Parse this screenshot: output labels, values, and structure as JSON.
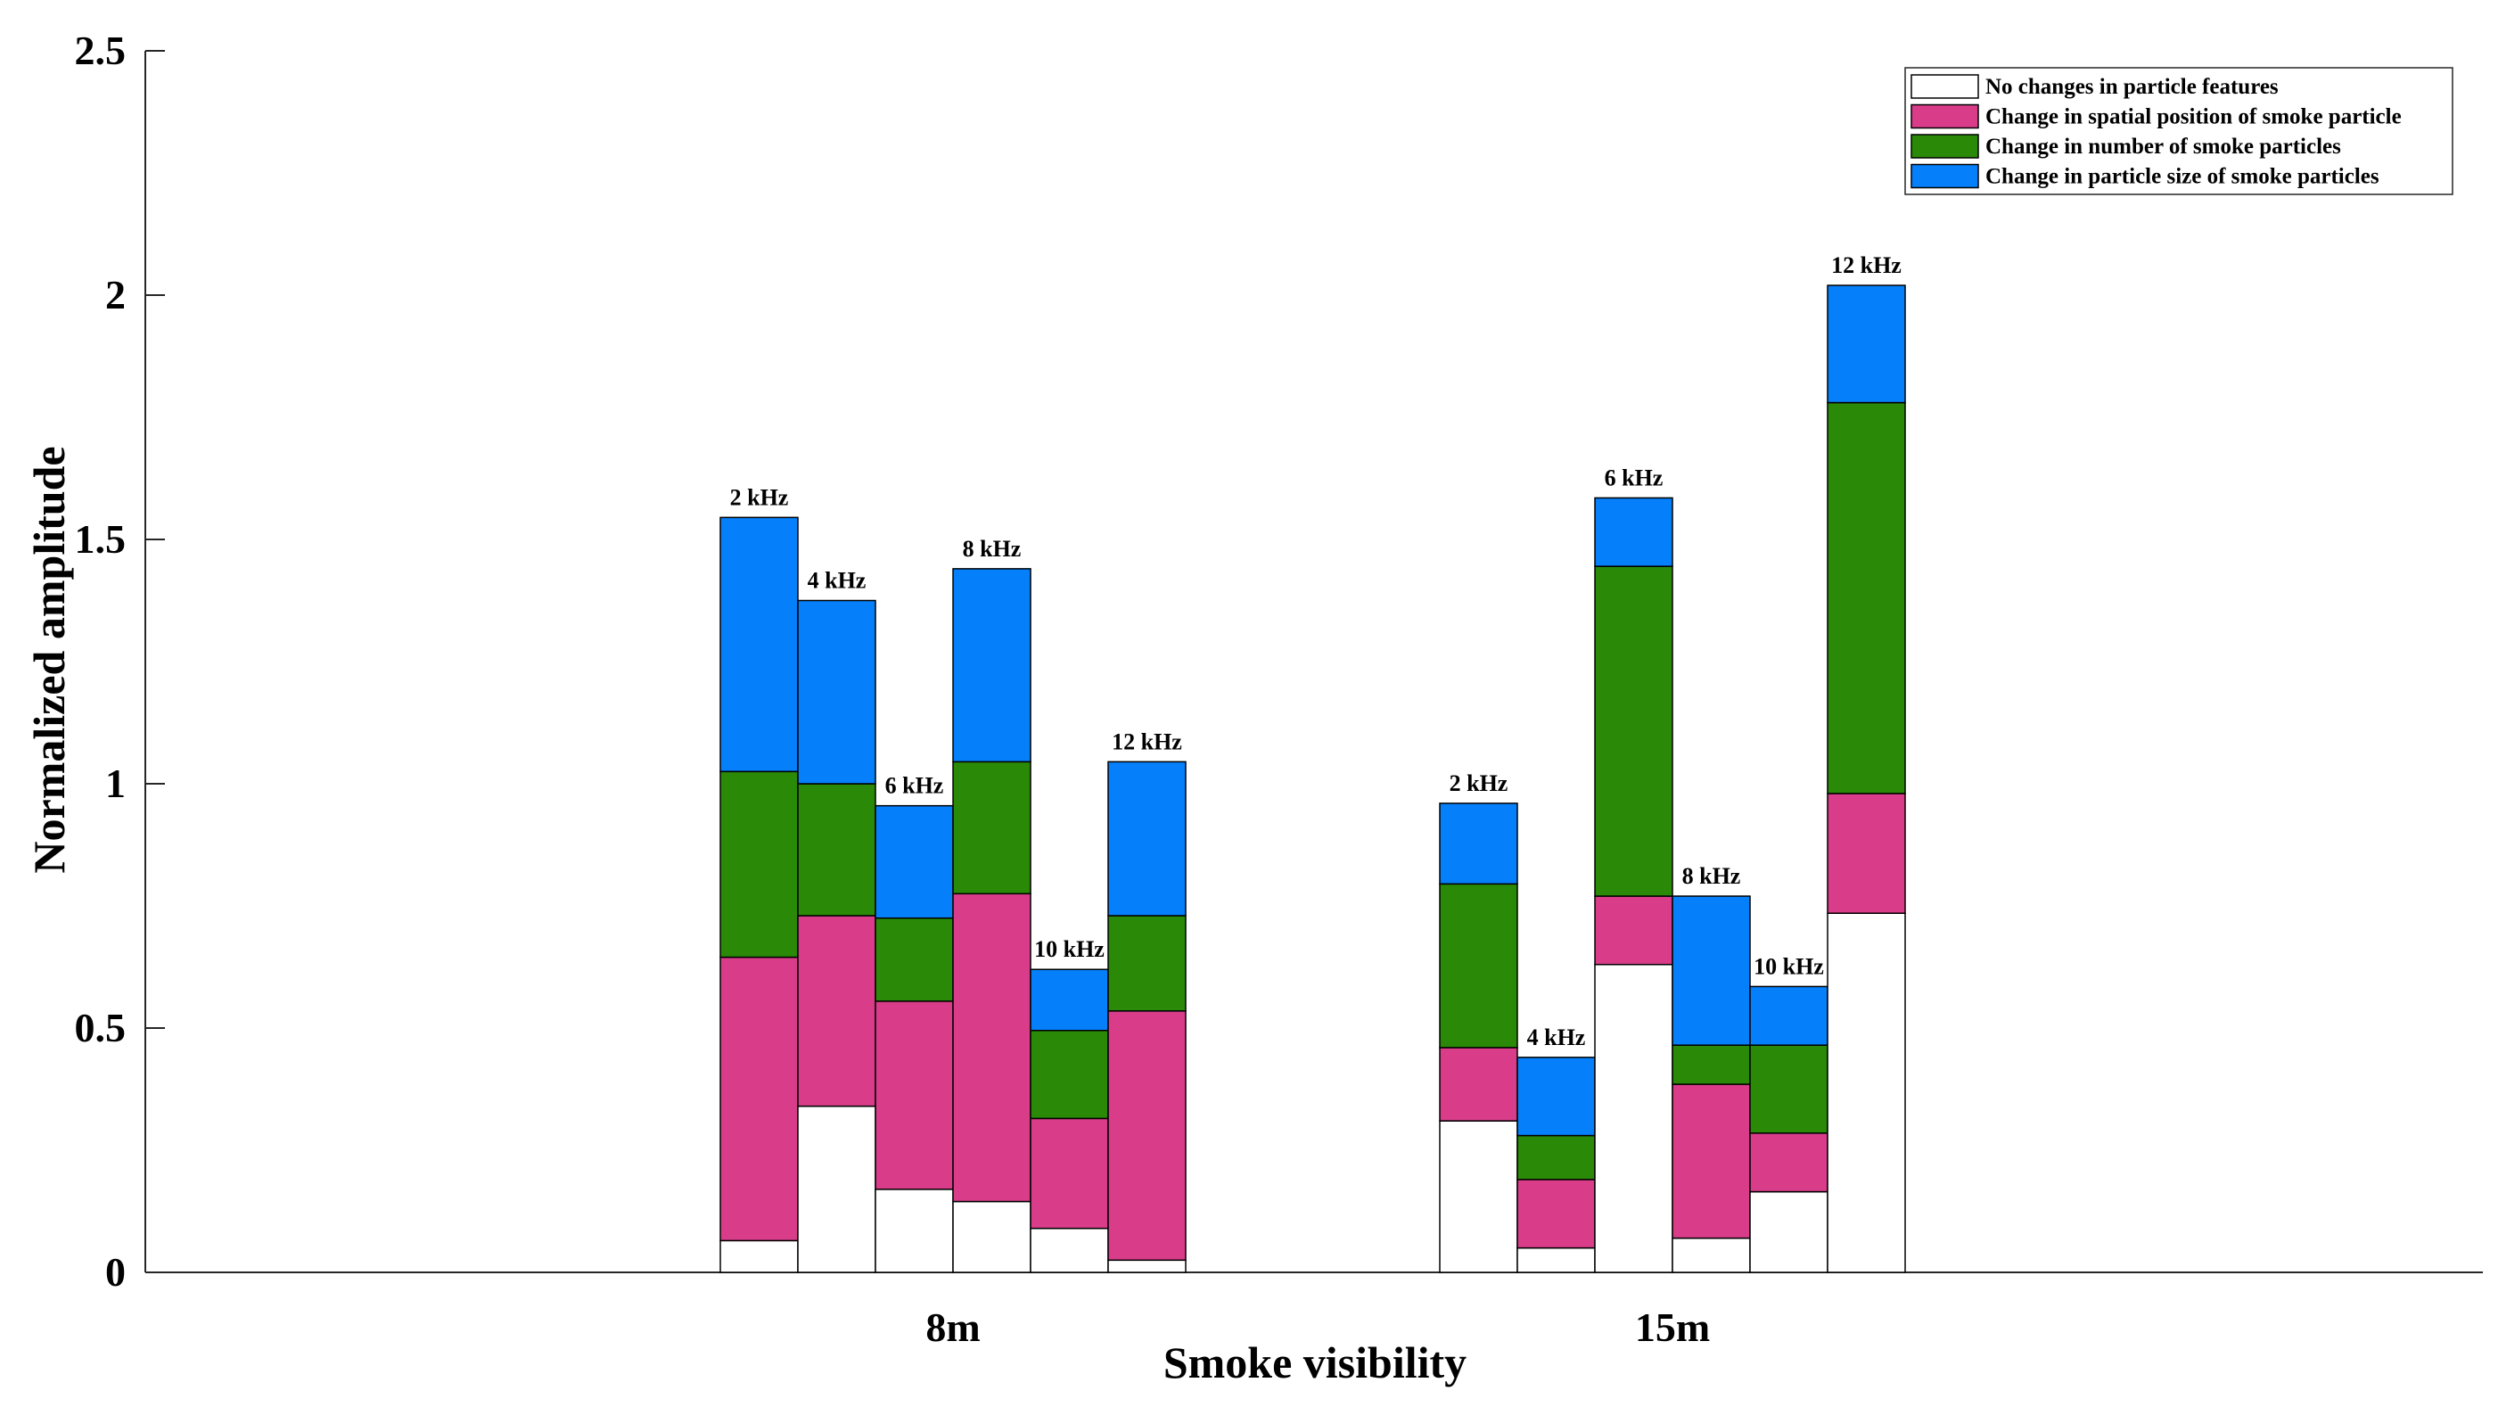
{
  "chart_data": {
    "type": "bar",
    "stacked": true,
    "xlabel": "Smoke visibility",
    "ylabel": "Normalized amplitude",
    "ylim": [
      0,
      2.5
    ],
    "yticks": [
      0,
      0.5,
      1,
      1.5,
      2,
      2.5
    ],
    "ytick_labels": [
      "0",
      "0.5",
      "1",
      "1.5",
      "2",
      "2.5"
    ],
    "grid": false,
    "legend_position": "top-right",
    "groups": [
      {
        "label": "8m",
        "bars": [
          {
            "label": "2 kHz",
            "values": [
              0.065,
              0.58,
              0.38,
              0.52
            ]
          },
          {
            "label": "4 kHz",
            "values": [
              0.34,
              0.39,
              0.27,
              0.375
            ]
          },
          {
            "label": "6 kHz",
            "values": [
              0.17,
              0.385,
              0.17,
              0.23
            ]
          },
          {
            "label": "8 kHz",
            "values": [
              0.145,
              0.63,
              0.27,
              0.395
            ]
          },
          {
            "label": "10 kHz",
            "values": [
              0.09,
              0.225,
              0.18,
              0.125
            ]
          },
          {
            "label": "12 kHz",
            "values": [
              0.025,
              0.51,
              0.195,
              0.315
            ]
          }
        ]
      },
      {
        "label": "15m",
        "bars": [
          {
            "label": "2 kHz",
            "values": [
              0.31,
              0.15,
              0.335,
              0.165
            ]
          },
          {
            "label": "4 kHz",
            "values": [
              0.05,
              0.14,
              0.09,
              0.16
            ]
          },
          {
            "label": "6 kHz",
            "values": [
              0.63,
              0.14,
              0.675,
              0.14
            ]
          },
          {
            "label": "8 kHz",
            "values": [
              0.07,
              0.315,
              0.08,
              0.305
            ]
          },
          {
            "label": "10 kHz",
            "values": [
              0.165,
              0.12,
              0.18,
              0.12
            ]
          },
          {
            "label": "12 kHz",
            "values": [
              0.735,
              0.245,
              0.8,
              0.24
            ]
          }
        ]
      }
    ],
    "series": [
      {
        "name": "No changes in particle features",
        "color": "#ffffff"
      },
      {
        "name": "Change in spatial position of smoke particle",
        "color": "#d93d8a"
      },
      {
        "name": "Change in number of smoke particles",
        "color": "#2a8a08"
      },
      {
        "name": "Change in particle size of smoke particles",
        "color": "#0680fa"
      }
    ]
  }
}
